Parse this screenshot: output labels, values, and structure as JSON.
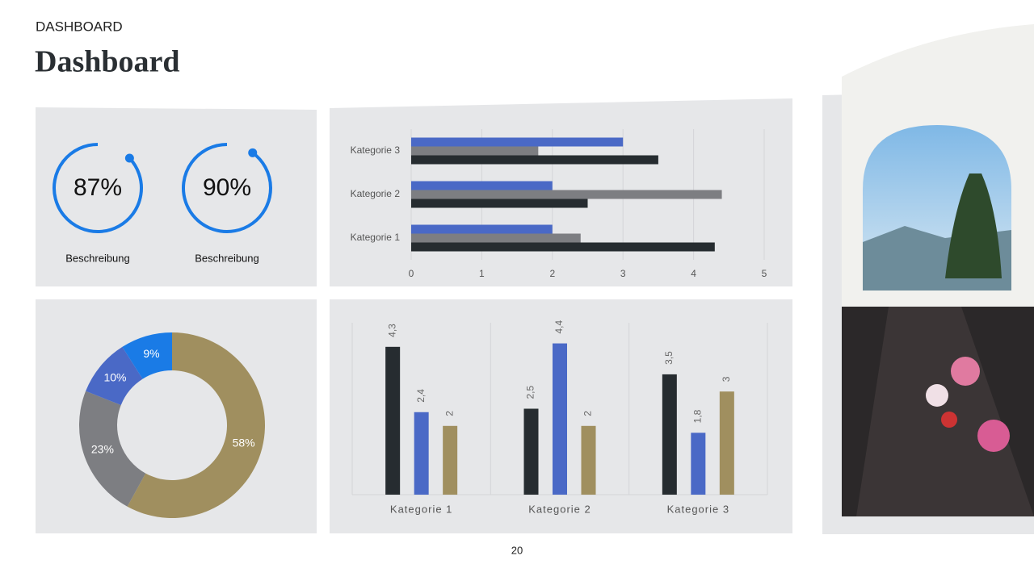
{
  "header": {
    "kicker": "DASHBOARD",
    "title": "Dashboard"
  },
  "page_number": "20",
  "chart_data": [
    {
      "type": "gauge",
      "values": [
        87
      ],
      "value_labels": [
        "87%"
      ],
      "caption": "Beschreibung",
      "color": "#1a7be6",
      "ylim": [
        0,
        100
      ]
    },
    {
      "type": "gauge",
      "values": [
        90
      ],
      "value_labels": [
        "90%"
      ],
      "caption": "Beschreibung",
      "color": "#1a7be6",
      "ylim": [
        0,
        100
      ]
    },
    {
      "type": "hbar",
      "categories": [
        "Kategorie 1",
        "Kategorie 2",
        "Kategorie 3"
      ],
      "series": [
        {
          "color": "#4a69c6",
          "values": [
            2,
            2,
            3
          ]
        },
        {
          "color": "#7d7e82",
          "values": [
            2.4,
            4.4,
            1.8
          ]
        },
        {
          "color": "#262c30",
          "values": [
            4.3,
            2.5,
            3.5
          ]
        }
      ],
      "xlim": [
        0,
        5
      ],
      "xticks": [
        0,
        1,
        2,
        3,
        4,
        5
      ],
      "grid": true
    },
    {
      "type": "donut",
      "values": [
        58,
        23,
        10,
        9
      ],
      "value_labels": [
        "58%",
        "23%",
        "10%",
        "9%"
      ],
      "colors": [
        "#a08f5f",
        "#7d7e82",
        "#4a69c6",
        "#1a7be6"
      ]
    },
    {
      "type": "bar",
      "categories": [
        "Kategorie 1",
        "Kategorie 2",
        "Kategorie 3"
      ],
      "series": [
        {
          "color": "#262c30",
          "values": [
            4.3,
            2.5,
            3.5
          ],
          "value_labels": [
            "4,3",
            "2,5",
            "3,5"
          ]
        },
        {
          "color": "#4a69c6",
          "values": [
            2.4,
            4.4,
            1.8
          ],
          "value_labels": [
            "2,4",
            "4,4",
            "1,8"
          ]
        },
        {
          "color": "#a08f5f",
          "values": [
            2,
            2,
            3
          ],
          "value_labels": [
            "2",
            "2",
            "3"
          ]
        }
      ],
      "ylim": [
        0,
        5
      ]
    }
  ]
}
